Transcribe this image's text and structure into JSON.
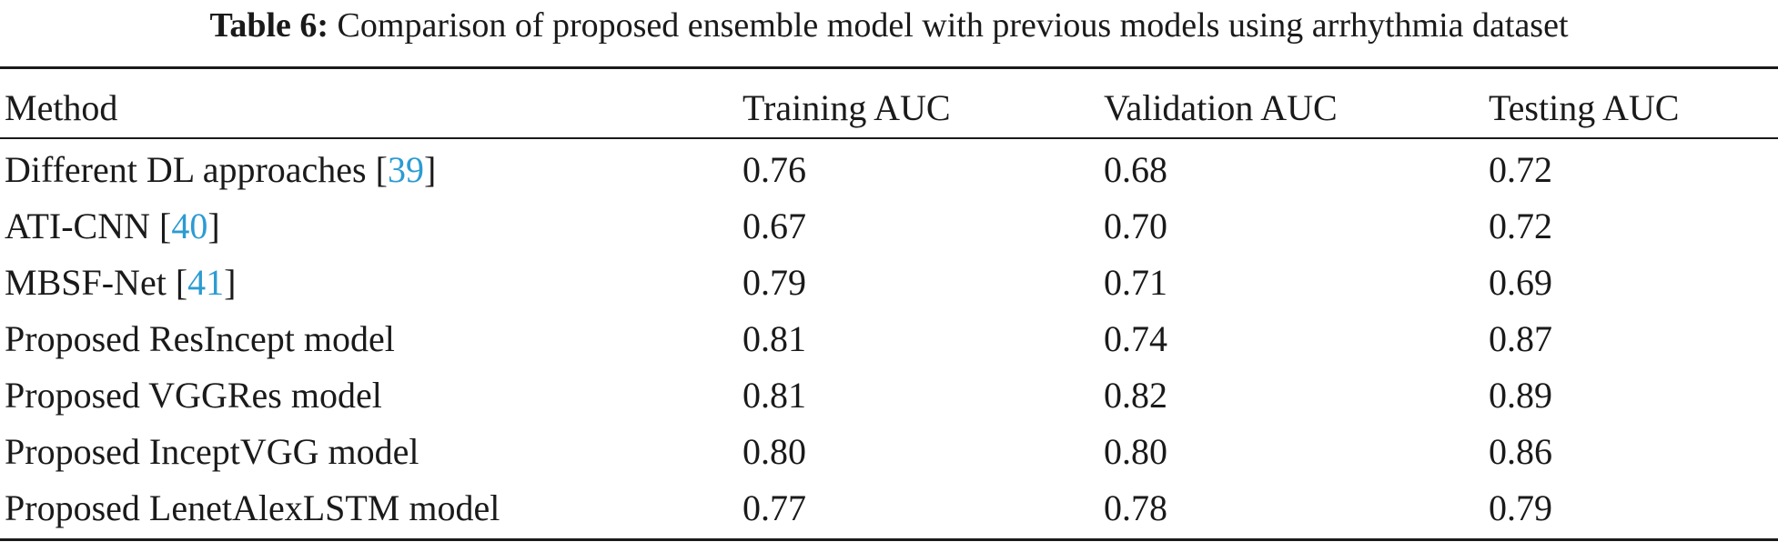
{
  "caption": {
    "label": "Table 6:",
    "text": "Comparison of proposed ensemble model with previous models using arrhythmia dataset"
  },
  "table": {
    "headers": [
      "Method",
      "Training AUC",
      "Validation AUC",
      "Testing AUC"
    ],
    "rows": [
      {
        "method": "Different DL approaches",
        "ref": "39",
        "training": "0.76",
        "validation": "0.68",
        "testing": "0.72"
      },
      {
        "method": "ATI-CNN",
        "ref": "40",
        "training": "0.67",
        "validation": "0.70",
        "testing": "0.72"
      },
      {
        "method": "MBSF-Net",
        "ref": "41",
        "training": "0.79",
        "validation": "0.71",
        "testing": "0.69"
      },
      {
        "method": "Proposed ResIncept model",
        "ref": "",
        "training": "0.81",
        "validation": "0.74",
        "testing": "0.87"
      },
      {
        "method": "Proposed VGGRes model",
        "ref": "",
        "training": "0.81",
        "validation": "0.82",
        "testing": "0.89"
      },
      {
        "method": "Proposed InceptVGG model",
        "ref": "",
        "training": "0.80",
        "validation": "0.80",
        "testing": "0.86"
      },
      {
        "method": "Proposed LenetAlexLSTM model",
        "ref": "",
        "training": "0.77",
        "validation": "0.78",
        "testing": "0.79"
      }
    ],
    "citation_color": "#2c9bd3"
  }
}
